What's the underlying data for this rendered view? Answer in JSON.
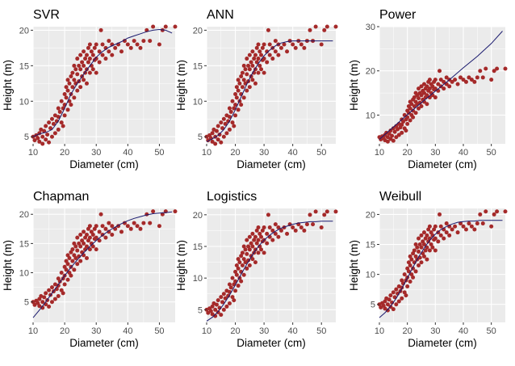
{
  "figure": {
    "colors": {
      "points": "#a52a2a",
      "fit_line": "#1a1a6e",
      "panel_bg": "#ebebeb",
      "grid": "#ffffff"
    },
    "xlabel": "Diameter (cm)",
    "ylabel": "Height (m)"
  },
  "chart_data": [
    {
      "type": "scatter",
      "title": "SVR",
      "xlim": [
        10,
        55
      ],
      "ylim": [
        4,
        20.5
      ],
      "xticks": [
        10,
        20,
        30,
        40,
        50
      ],
      "yticks": [
        5,
        10,
        15,
        20
      ],
      "grid": true,
      "point_series": "observed",
      "fit_curve": {
        "x": [
          10,
          12,
          14,
          16,
          18,
          20,
          22,
          24,
          26,
          28,
          30,
          32,
          34,
          36,
          38,
          40,
          42,
          44,
          46,
          48,
          50,
          52,
          54
        ],
        "y": [
          5.0,
          5.4,
          5.6,
          6.0,
          7.2,
          9.0,
          11.0,
          12.5,
          13.8,
          15.0,
          16.2,
          17.0,
          17.6,
          18.0,
          18.4,
          18.9,
          19.2,
          19.5,
          19.8,
          20.0,
          20.1,
          20.0,
          19.6
        ]
      }
    },
    {
      "type": "scatter",
      "title": "ANN",
      "xlim": [
        10,
        55
      ],
      "ylim": [
        4,
        20.5
      ],
      "xticks": [
        10,
        20,
        30,
        40,
        50
      ],
      "yticks": [
        5,
        10,
        15,
        20
      ],
      "grid": true,
      "point_series": "observed",
      "fit_curve": {
        "x": [
          10,
          12,
          14,
          16,
          18,
          20,
          22,
          24,
          26,
          28,
          30,
          32,
          34,
          36,
          38,
          40,
          42,
          44,
          46,
          48,
          50,
          52,
          54
        ],
        "y": [
          4.3,
          4.7,
          5.2,
          6.0,
          7.2,
          8.8,
          10.6,
          12.4,
          14.0,
          15.3,
          16.4,
          17.2,
          17.8,
          18.2,
          18.4,
          18.5,
          18.5,
          18.5,
          18.5,
          18.5,
          18.5,
          18.5,
          18.5
        ]
      }
    },
    {
      "type": "scatter",
      "title": "Power",
      "xlim": [
        10,
        55
      ],
      "ylim": [
        3.5,
        30
      ],
      "xticks": [
        10,
        20,
        30,
        40,
        50
      ],
      "yticks": [
        10,
        20,
        30
      ],
      "grid": true,
      "point_series": "observed",
      "fit_curve": {
        "x": [
          10,
          15,
          20,
          25,
          30,
          35,
          40,
          45,
          50,
          54
        ],
        "y": [
          4.5,
          7.3,
          10.1,
          12.8,
          15.4,
          18.0,
          20.7,
          23.3,
          26.2,
          29.0
        ]
      }
    },
    {
      "type": "scatter",
      "title": "Chapman",
      "xlim": [
        10,
        55
      ],
      "ylim": [
        1.5,
        21
      ],
      "xticks": [
        10,
        20,
        30,
        40,
        50
      ],
      "yticks": [
        5,
        10,
        15,
        20
      ],
      "grid": true,
      "point_series": "observed",
      "fit_curve": {
        "x": [
          10,
          12,
          14,
          16,
          18,
          20,
          22,
          24,
          26,
          28,
          30,
          32,
          34,
          36,
          38,
          40,
          42,
          44,
          46,
          48,
          50,
          52,
          54
        ],
        "y": [
          2.3,
          3.6,
          5.0,
          6.5,
          8.0,
          9.5,
          10.9,
          12.2,
          13.4,
          14.5,
          15.5,
          16.4,
          17.2,
          17.8,
          18.4,
          18.9,
          19.3,
          19.6,
          19.9,
          20.1,
          20.2,
          20.3,
          20.4
        ]
      }
    },
    {
      "type": "scatter",
      "title": "Logistics",
      "xlim": [
        10,
        55
      ],
      "ylim": [
        3,
        21
      ],
      "xticks": [
        10,
        20,
        30,
        40,
        50
      ],
      "yticks": [
        5,
        10,
        15,
        20
      ],
      "grid": true,
      "point_series": "observed",
      "fit_curve": {
        "x": [
          10,
          12,
          14,
          16,
          18,
          20,
          22,
          24,
          26,
          28,
          30,
          32,
          34,
          36,
          38,
          40,
          42,
          44,
          46,
          48,
          50,
          52,
          54
        ],
        "y": [
          3.2,
          3.8,
          4.7,
          5.9,
          7.3,
          8.9,
          10.6,
          12.2,
          13.7,
          15.0,
          16.0,
          16.8,
          17.4,
          17.9,
          18.2,
          18.5,
          18.7,
          18.8,
          18.9,
          18.9,
          19.0,
          19.0,
          19.0
        ]
      }
    },
    {
      "type": "scatter",
      "title": "Weibull",
      "xlim": [
        10,
        55
      ],
      "ylim": [
        2,
        21
      ],
      "xticks": [
        10,
        20,
        30,
        40,
        50
      ],
      "yticks": [
        5,
        10,
        15,
        20
      ],
      "grid": true,
      "point_series": "observed",
      "fit_curve": {
        "x": [
          10,
          12,
          14,
          16,
          18,
          20,
          22,
          24,
          26,
          28,
          30,
          32,
          34,
          36,
          38,
          40,
          42,
          44,
          46,
          48,
          50,
          52,
          54
        ],
        "y": [
          2.8,
          3.6,
          4.7,
          6.0,
          7.6,
          9.4,
          11.2,
          12.9,
          14.4,
          15.7,
          16.7,
          17.5,
          18.0,
          18.4,
          18.7,
          18.8,
          18.9,
          18.9,
          19.0,
          19.0,
          19.0,
          19.0,
          19.0
        ]
      }
    }
  ],
  "observed": [
    [
      10.0,
      5.0
    ],
    [
      10.5,
      4.5
    ],
    [
      11.0,
      5.2
    ],
    [
      11.5,
      4.8
    ],
    [
      12.0,
      5.5
    ],
    [
      12.0,
      4.3
    ],
    [
      12.5,
      6.0
    ],
    [
      13.0,
      5.0
    ],
    [
      13.0,
      4.0
    ],
    [
      13.5,
      5.8
    ],
    [
      14.0,
      4.6
    ],
    [
      14.0,
      6.5
    ],
    [
      14.5,
      5.3
    ],
    [
      15.0,
      7.0
    ],
    [
      15.0,
      4.2
    ],
    [
      15.5,
      6.2
    ],
    [
      16.0,
      5.0
    ],
    [
      16.0,
      7.5
    ],
    [
      16.5,
      6.8
    ],
    [
      17.0,
      5.5
    ],
    [
      17.0,
      8.0
    ],
    [
      17.5,
      7.2
    ],
    [
      18.0,
      6.0
    ],
    [
      18.0,
      9.0
    ],
    [
      18.0,
      7.8
    ],
    [
      18.5,
      8.5
    ],
    [
      19.0,
      7.0
    ],
    [
      19.0,
      10.0
    ],
    [
      19.5,
      9.0
    ],
    [
      19.5,
      6.5
    ],
    [
      20.0,
      8.0
    ],
    [
      20.0,
      11.0
    ],
    [
      20.0,
      9.5
    ],
    [
      20.5,
      10.5
    ],
    [
      20.5,
      12.0
    ],
    [
      21.0,
      8.8
    ],
    [
      21.0,
      11.5
    ],
    [
      21.0,
      13.0
    ],
    [
      21.5,
      10.0
    ],
    [
      21.5,
      12.5
    ],
    [
      22.0,
      11.0
    ],
    [
      22.0,
      13.5
    ],
    [
      22.0,
      9.5
    ],
    [
      22.5,
      12.0
    ],
    [
      22.5,
      14.0
    ],
    [
      23.0,
      10.5
    ],
    [
      23.0,
      13.0
    ],
    [
      23.0,
      15.0
    ],
    [
      23.5,
      12.5
    ],
    [
      23.5,
      14.5
    ],
    [
      24.0,
      11.5
    ],
    [
      24.0,
      13.8
    ],
    [
      24.0,
      16.0
    ],
    [
      24.5,
      12.8
    ],
    [
      24.5,
      15.0
    ],
    [
      25.0,
      12.0
    ],
    [
      25.0,
      14.5
    ],
    [
      25.0,
      16.5
    ],
    [
      25.5,
      13.5
    ],
    [
      25.5,
      15.5
    ],
    [
      26.0,
      13.0
    ],
    [
      26.0,
      15.0
    ],
    [
      26.0,
      17.0
    ],
    [
      26.5,
      14.0
    ],
    [
      26.5,
      16.0
    ],
    [
      27.0,
      14.5
    ],
    [
      27.0,
      16.5
    ],
    [
      27.0,
      12.5
    ],
    [
      27.5,
      15.5
    ],
    [
      27.5,
      17.5
    ],
    [
      28.0,
      14.0
    ],
    [
      28.0,
      16.0
    ],
    [
      28.0,
      18.0
    ],
    [
      28.5,
      15.0
    ],
    [
      28.5,
      17.0
    ],
    [
      29.0,
      16.5
    ],
    [
      29.0,
      14.5
    ],
    [
      29.5,
      17.5
    ],
    [
      29.5,
      15.8
    ],
    [
      30.0,
      16.0
    ],
    [
      30.0,
      18.0
    ],
    [
      30.0,
      14.0
    ],
    [
      31.0,
      17.0
    ],
    [
      31.0,
      15.5
    ],
    [
      31.5,
      20.0
    ],
    [
      32.0,
      16.5
    ],
    [
      32.0,
      18.0
    ],
    [
      33.0,
      17.5
    ],
    [
      33.0,
      16.0
    ],
    [
      34.0,
      17.0
    ],
    [
      34.0,
      18.5
    ],
    [
      35.0,
      16.5
    ],
    [
      35.0,
      18.0
    ],
    [
      36.0,
      17.5
    ],
    [
      37.0,
      18.0
    ],
    [
      38.0,
      17.0
    ],
    [
      39.0,
      18.5
    ],
    [
      40.0,
      18.0
    ],
    [
      41.0,
      17.5
    ],
    [
      42.0,
      18.5
    ],
    [
      43.0,
      18.0
    ],
    [
      44.0,
      17.5
    ],
    [
      45.0,
      18.5
    ],
    [
      46.0,
      20.0
    ],
    [
      47.0,
      18.5
    ],
    [
      48.0,
      20.5
    ],
    [
      50.0,
      18.0
    ],
    [
      51.0,
      20.0
    ],
    [
      52.0,
      20.5
    ],
    [
      55.0,
      20.5
    ]
  ]
}
